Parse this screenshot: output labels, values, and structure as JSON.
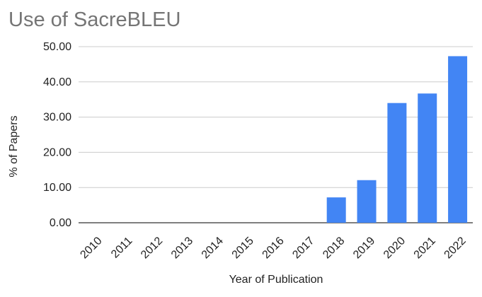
{
  "chart_data": {
    "type": "bar",
    "title": "Use of SacreBLEU",
    "xlabel": "Year of Publication",
    "ylabel": "% of Papers",
    "categories": [
      "2010",
      "2011",
      "2012",
      "2013",
      "2014",
      "2015",
      "2016",
      "2017",
      "2018",
      "2019",
      "2020",
      "2021",
      "2022"
    ],
    "series": [
      {
        "values": [
          0,
          0,
          0,
          0,
          0,
          0,
          0,
          0,
          7.2,
          12.1,
          34.0,
          36.7,
          47.3
        ]
      }
    ],
    "ylim": [
      0,
      50
    ],
    "yticks": [
      "0.00",
      "10.00",
      "20.00",
      "30.00",
      "40.00",
      "50.00"
    ],
    "grid": true,
    "legend": "none",
    "colors": {
      "bar": "#4285f4",
      "grid": "#cccccc",
      "title": "#757575"
    }
  }
}
